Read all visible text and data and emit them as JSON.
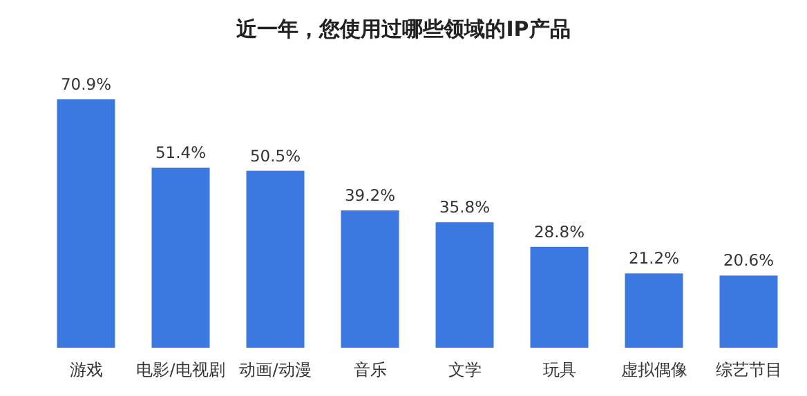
{
  "chart_data": {
    "type": "bar",
    "title": "近一年，您使用过哪些领域的IP产品",
    "categories": [
      "游戏",
      "电影/电视剧",
      "动画/动漫",
      "音乐",
      "文学",
      "玩具",
      "虚拟偶像",
      "综艺节目"
    ],
    "values": [
      70.9,
      51.4,
      50.5,
      39.2,
      35.8,
      28.8,
      21.2,
      20.6
    ],
    "value_labels": [
      "70.9%",
      "51.4%",
      "50.5%",
      "39.2%",
      "35.8%",
      "28.8%",
      "21.2%",
      "20.6%"
    ],
    "color": "#3b78e0"
  }
}
